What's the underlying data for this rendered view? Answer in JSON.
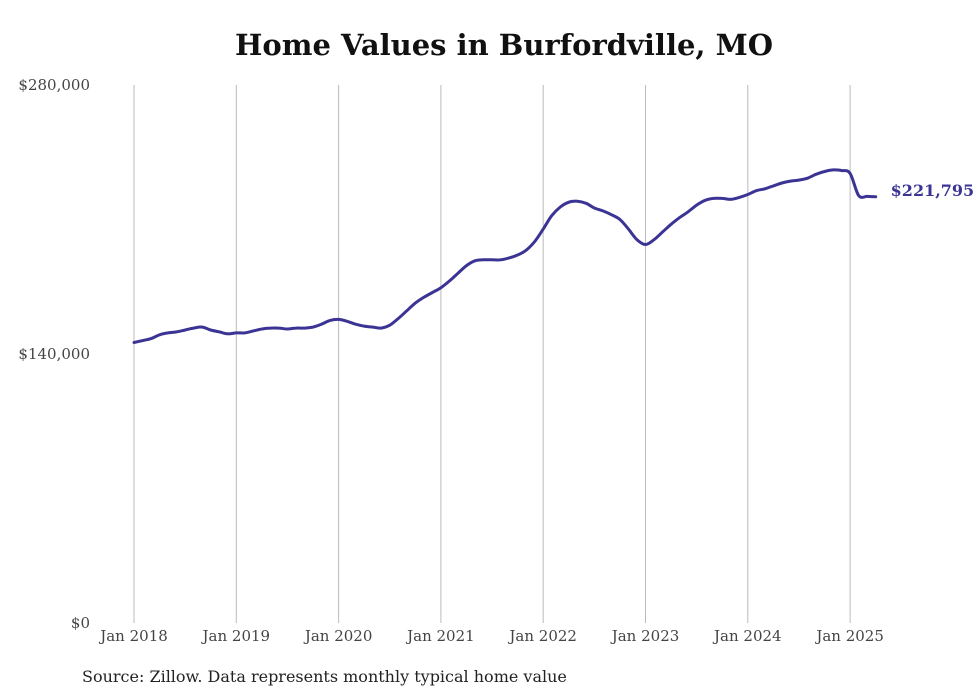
{
  "title": "Home Values in Burfordville, MO",
  "source_note": "Source: Zillow. Data represents monthly typical home value",
  "colors": {
    "line": "#3b3494",
    "grid": "#bbbbbb",
    "text": "#444444"
  },
  "chart_data": {
    "type": "line",
    "title": "Home Values in Burfordville, MO",
    "xlabel": "",
    "ylabel": "",
    "ylim": [
      0,
      280000
    ],
    "yticks": [
      0,
      140000,
      280000
    ],
    "ytick_labels": [
      "$0",
      "$140,000",
      "$280,000"
    ],
    "xticks": [
      "2018-01",
      "2019-01",
      "2020-01",
      "2021-01",
      "2022-01",
      "2023-01",
      "2024-01",
      "2025-01"
    ],
    "xtick_labels": [
      "Jan 2018",
      "Jan 2019",
      "Jan 2020",
      "Jan 2021",
      "Jan 2022",
      "Jan 2023",
      "Jan 2024",
      "Jan 2025"
    ],
    "grid": "vertical",
    "end_label": "$221,795",
    "series": [
      {
        "x": [
          "2018-01",
          "2018-02",
          "2018-03",
          "2018-04",
          "2018-05",
          "2018-06",
          "2018-07",
          "2018-08",
          "2018-09",
          "2018-10",
          "2018-11",
          "2018-12",
          "2019-01",
          "2019-02",
          "2019-03",
          "2019-04",
          "2019-05",
          "2019-06",
          "2019-07",
          "2019-08",
          "2019-09",
          "2019-10",
          "2019-11",
          "2019-12",
          "2020-01",
          "2020-02",
          "2020-03",
          "2020-04",
          "2020-05",
          "2020-06",
          "2020-07",
          "2020-08",
          "2020-09",
          "2020-10",
          "2020-11",
          "2020-12",
          "2021-01",
          "2021-02",
          "2021-03",
          "2021-04",
          "2021-05",
          "2021-06",
          "2021-07",
          "2021-08",
          "2021-09",
          "2021-10",
          "2021-11",
          "2021-12",
          "2022-01",
          "2022-02",
          "2022-03",
          "2022-04",
          "2022-05",
          "2022-06",
          "2022-07",
          "2022-08",
          "2022-09",
          "2022-10",
          "2022-11",
          "2022-12",
          "2023-01",
          "2023-02",
          "2023-03",
          "2023-04",
          "2023-05",
          "2023-06",
          "2023-07",
          "2023-08",
          "2023-09",
          "2023-10",
          "2023-11",
          "2023-12",
          "2024-01",
          "2024-02",
          "2024-03",
          "2024-04",
          "2024-05",
          "2024-06",
          "2024-07",
          "2024-08",
          "2024-09",
          "2024-10",
          "2024-11",
          "2024-12",
          "2025-01",
          "2025-02",
          "2025-03",
          "2025-04"
        ],
        "values": [
          146000,
          147000,
          148000,
          150000,
          151000,
          151500,
          152500,
          153500,
          154000,
          152500,
          151500,
          150500,
          151000,
          151000,
          152000,
          153000,
          153500,
          153500,
          153000,
          153500,
          153500,
          154000,
          155500,
          157500,
          158000,
          157000,
          155500,
          154500,
          154000,
          153500,
          155000,
          158500,
          162500,
          166500,
          169500,
          172000,
          174500,
          178000,
          182000,
          186000,
          188500,
          189000,
          189000,
          189000,
          190000,
          191500,
          194000,
          198500,
          205000,
          212000,
          216500,
          219000,
          219500,
          218500,
          216000,
          214500,
          212500,
          210000,
          205000,
          199500,
          197000,
          199500,
          203500,
          207500,
          211000,
          214000,
          217500,
          220000,
          221000,
          221000,
          220500,
          221500,
          223000,
          225000,
          226000,
          227500,
          229000,
          230000,
          230500,
          231500,
          233500,
          235000,
          235800,
          235500,
          234000,
          222500,
          222000,
          221795
        ]
      }
    ]
  }
}
